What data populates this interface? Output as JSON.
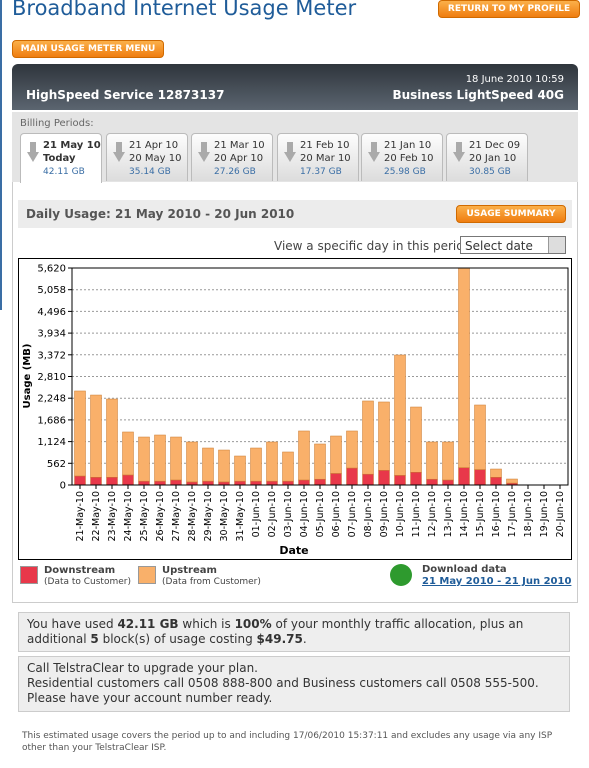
{
  "header": {
    "title": "Broadband Internet Usage Meter",
    "profile_button": "RETURN TO MY PROFILE",
    "menu_button": "MAIN USAGE METER MENU"
  },
  "account": {
    "date": "18 June 2010 10:59",
    "service": "HighSpeed Service 12873137",
    "plan": "Business LightSpeed 40G"
  },
  "billing": {
    "label": "Billing Periods:",
    "periods": [
      {
        "from": "21 May 10",
        "to": "Today",
        "usage": "42.11 GB"
      },
      {
        "from": "21 Apr 10",
        "to": "20 May 10",
        "usage": "35.14 GB"
      },
      {
        "from": "21 Mar 10",
        "to": "20 Apr 10",
        "usage": "27.26 GB"
      },
      {
        "from": "21 Feb 10",
        "to": "20 Mar 10",
        "usage": "17.37 GB"
      },
      {
        "from": "21 Jan 10",
        "to": "20 Feb 10",
        "usage": "25.98 GB"
      },
      {
        "from": "21 Dec 09",
        "to": "20 Jan 10",
        "usage": "30.85 GB"
      }
    ]
  },
  "daily": {
    "title": "Daily Usage: 21 May 2010 - 20 Jun 2010",
    "summary_button": "USAGE SUMMARY",
    "view_label": "View a specific day in this period:",
    "select": "Select date"
  },
  "chart_data": {
    "type": "stacked-bar",
    "x_label": "Date",
    "y_label": "Usage (MB)",
    "categories": [
      "21-May-10",
      "22-May-10",
      "23-May-10",
      "24-May-10",
      "25-May-10",
      "26-May-10",
      "27-May-10",
      "28-May-10",
      "29-May-10",
      "30-May-10",
      "31-May-10",
      "01-Jun-10",
      "02-Jun-10",
      "03-Jun-10",
      "04-Jun-10",
      "05-Jun-10",
      "06-Jun-10",
      "07-Jun-10",
      "08-Jun-10",
      "09-Jun-10",
      "10-Jun-10",
      "11-Jun-10",
      "12-Jun-10",
      "13-Jun-10",
      "14-Jun-10",
      "15-Jun-10",
      "16-Jun-10",
      "17-Jun-10",
      "18-Jun-10",
      "19-Jun-10",
      "20-Jun-10"
    ],
    "series": [
      {
        "name": "Downstream",
        "color": "#e8384a",
        "values": [
          233,
          200,
          200,
          260,
          100,
          100,
          130,
          80,
          100,
          80,
          100,
          100,
          100,
          100,
          130,
          150,
          300,
          440,
          280,
          380,
          250,
          330,
          150,
          130,
          450,
          400,
          200,
          50,
          0,
          0,
          0
        ]
      },
      {
        "name": "Upstream",
        "color": "#f9b06a",
        "values": [
          2202,
          2130,
          2027,
          1113,
          1143,
          1195,
          1113,
          1034,
          858,
          826,
          651,
          858,
          1014,
          755,
          1269,
          912,
          969,
          959,
          1896,
          1770,
          3117,
          1690,
          964,
          984,
          5170,
          1672,
          214,
          105,
          0,
          0,
          0
        ]
      }
    ],
    "ylim": [
      0,
      5620
    ],
    "yticks": [
      0,
      {
        "value": 562,
        "label": "562"
      },
      {
        "value": 1124,
        "label": "1,124"
      },
      {
        "value": 1686,
        "label": "1,686"
      },
      {
        "value": 2248,
        "label": "2,248"
      },
      {
        "value": 2810,
        "label": "2,810"
      },
      {
        "value": 3372,
        "label": "3,372"
      },
      {
        "value": 3934,
        "label": "3,934"
      },
      {
        "value": 4496,
        "label": "4,496"
      },
      {
        "value": 5058,
        "label": "5,058"
      },
      {
        "value": 5620,
        "label": "5,620"
      }
    ],
    "grid": true
  },
  "legend_notes": [
    "(Data to Customer)",
    "(Data from Customer)"
  ],
  "download": {
    "title": "Download data",
    "link": "21 May 2010 - 21 Jun 2010"
  },
  "usage_message": [
    "You have used ",
    "42.11 GB",
    " which is ",
    "100%",
    " of your monthly traffic allocation, plus an additional ",
    "5",
    " block(s) of usage costing ",
    "$49.75",
    "."
  ],
  "call": [
    "Call TelstraClear to upgrade your plan.",
    "Residential customers call 0508 888-800 and Business customers call 0508 555-500.",
    "Please have your account number ready."
  ],
  "footnote": "This estimated usage covers the period up to and including 17/06/2010 15:37:11 and excludes any usage via any ISP other than your TelstraClear ISP."
}
